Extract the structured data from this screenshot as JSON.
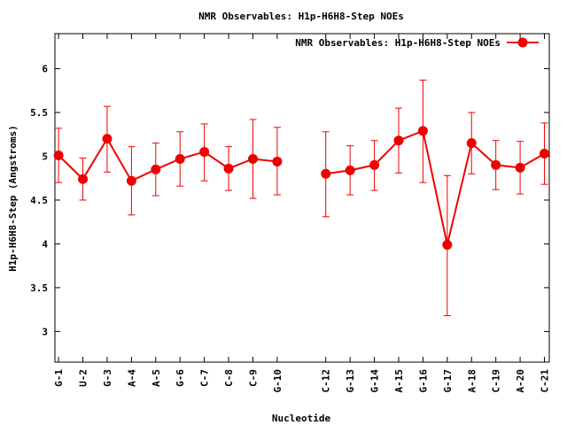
{
  "chart_data": {
    "type": "line",
    "title": "NMR Observables: H1p-H6H8-Step NOEs",
    "xlabel": "Nucleotide",
    "ylabel": "H1p-H6H8-Step (Angstroms)",
    "ylim": [
      2.65,
      6.4
    ],
    "yticks": [
      3,
      3.5,
      4,
      4.5,
      5,
      5.5,
      6
    ],
    "ytick_labels": [
      "3",
      "3.5",
      "4",
      "4.5",
      "5",
      "5.5",
      "6"
    ],
    "xlim": [
      0.85,
      21.2
    ],
    "grid": false,
    "legend_position": "top-right",
    "categories": [
      "G-1",
      "U-2",
      "G-3",
      "A-4",
      "A-5",
      "G-6",
      "C-7",
      "C-8",
      "C-9",
      "G-10",
      "C-12",
      "G-13",
      "G-14",
      "A-15",
      "G-16",
      "G-17",
      "A-18",
      "C-19",
      "A-20",
      "C-21"
    ],
    "x": [
      1,
      2,
      3,
      4,
      5,
      6,
      7,
      8,
      9,
      10,
      12,
      13,
      14,
      15,
      16,
      17,
      18,
      19,
      20,
      21
    ],
    "series": [
      {
        "name": "NMR Observables: H1p-H6H8-Step NOEs",
        "color": "#ee0000",
        "segments": [
          [
            0,
            9
          ],
          [
            10,
            19
          ]
        ],
        "values": [
          5.01,
          4.74,
          5.2,
          4.72,
          4.85,
          4.97,
          5.05,
          4.86,
          4.97,
          4.94,
          4.8,
          4.84,
          4.9,
          5.18,
          5.29,
          3.99,
          5.15,
          4.9,
          4.87,
          5.03
        ],
        "err_low": [
          4.7,
          4.5,
          4.82,
          4.33,
          4.55,
          4.66,
          4.72,
          4.61,
          4.52,
          4.56,
          4.31,
          4.56,
          4.61,
          4.81,
          4.7,
          3.18,
          4.8,
          4.62,
          4.57,
          4.68
        ],
        "err_high": [
          5.32,
          4.98,
          5.57,
          5.11,
          5.15,
          5.28,
          5.37,
          5.11,
          5.42,
          5.33,
          5.28,
          5.12,
          5.18,
          5.55,
          5.87,
          4.78,
          5.5,
          5.18,
          5.17,
          5.38
        ]
      }
    ]
  }
}
